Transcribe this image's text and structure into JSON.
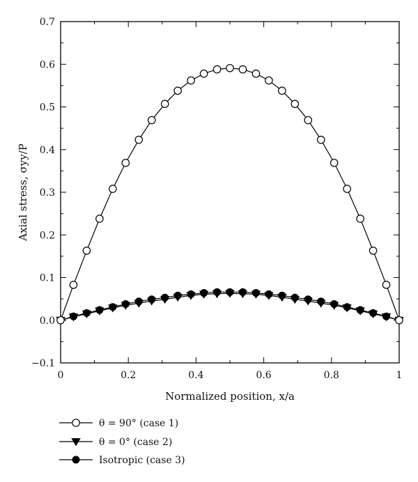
{
  "chart_data": {
    "type": "line",
    "xlabel": "Normalized position, x/a",
    "ylabel": "Axial stress, σyy/P",
    "xlim": [
      0,
      1
    ],
    "ylim": [
      -0.1,
      0.7
    ],
    "xticks": [
      0,
      0.2,
      0.4,
      0.6,
      0.8,
      1
    ],
    "xtick_labels": [
      "0",
      "0.2",
      "0.4",
      "0.6",
      "0.8",
      "1"
    ],
    "yticks": [
      -0.1,
      0.0,
      0.1,
      0.2,
      0.3,
      0.4,
      0.5,
      0.6,
      0.7
    ],
    "ytick_labels": [
      "−0.1",
      "0.0",
      "0.1",
      "0.2",
      "0.3",
      "0.4",
      "0.5",
      "0.6",
      "0.7"
    ],
    "grid": false,
    "legend_position": "bottom-left, below the plot",
    "x": [
      0,
      0.038,
      0.077,
      0.115,
      0.154,
      0.192,
      0.231,
      0.269,
      0.308,
      0.346,
      0.385,
      0.423,
      0.462,
      0.5,
      0.538,
      0.577,
      0.615,
      0.654,
      0.692,
      0.731,
      0.769,
      0.808,
      0.846,
      0.885,
      0.923,
      0.962,
      1
    ],
    "series": [
      {
        "name": "θ = 90° (case 1)",
        "marker": "open-circle",
        "color": "#000000",
        "values": [
          0.0,
          0.083,
          0.163,
          0.238,
          0.308,
          0.369,
          0.423,
          0.469,
          0.507,
          0.538,
          0.562,
          0.578,
          0.588,
          0.591,
          0.588,
          0.578,
          0.562,
          0.538,
          0.507,
          0.469,
          0.423,
          0.369,
          0.308,
          0.238,
          0.163,
          0.083,
          0.0
        ]
      },
      {
        "name": "θ = 0° (case 2)",
        "marker": "filled-triangle-down",
        "color": "#000000",
        "values": [
          0.0,
          0.008,
          0.015,
          0.022,
          0.029,
          0.035,
          0.04,
          0.045,
          0.049,
          0.054,
          0.058,
          0.061,
          0.062,
          0.063,
          0.062,
          0.061,
          0.058,
          0.054,
          0.049,
          0.045,
          0.04,
          0.035,
          0.029,
          0.022,
          0.015,
          0.008,
          0.0
        ]
      },
      {
        "name": "Isotropic (case 3)",
        "marker": "filled-circle",
        "color": "#000000",
        "values": [
          0.0,
          0.009,
          0.017,
          0.024,
          0.031,
          0.038,
          0.044,
          0.049,
          0.053,
          0.058,
          0.061,
          0.064,
          0.066,
          0.066,
          0.066,
          0.064,
          0.061,
          0.058,
          0.053,
          0.049,
          0.044,
          0.038,
          0.031,
          0.024,
          0.017,
          0.009,
          0.0
        ]
      }
    ]
  }
}
